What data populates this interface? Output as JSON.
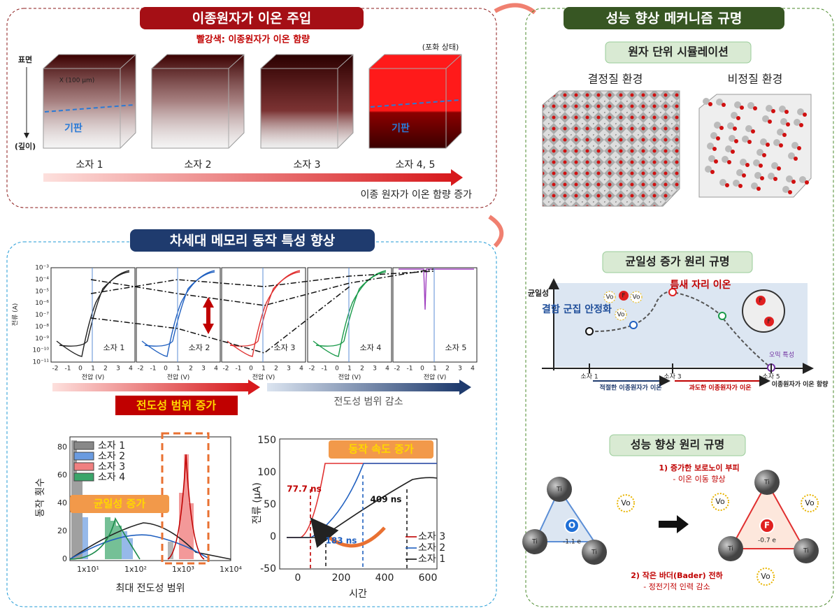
{
  "panel_injection": {
    "title": "이종원자가 이온 주입",
    "subtitle": "빨강색: 이종원자가 이온 함량",
    "saturation": "(포화 상태)",
    "surface": "표면",
    "depth": "(깊이)",
    "scale": "X (100 μm)",
    "substrate": "기판",
    "devices": [
      "소자 1",
      "소자 2",
      "소자 3",
      "소자 4, 5"
    ],
    "trend": "이종 원자가 이온 함량 증가"
  },
  "panel_memory": {
    "title": "차세대 메모리 동작 특성 향상",
    "iv": {
      "ylabel": "전류 (A)",
      "yticks": [
        "10⁻³",
        "10⁻⁴",
        "10⁻⁵",
        "10⁻⁶",
        "10⁻⁷",
        "10⁻⁸",
        "10⁻⁹",
        "10⁻¹⁰",
        "10⁻¹¹"
      ],
      "xticks": [
        "-2",
        "-1",
        "0",
        "1",
        "2",
        "3",
        "4"
      ],
      "xlabel": "전압 (V)",
      "devices": [
        "소자 1",
        "소자 2",
        "소자 3",
        "소자 4",
        "소자 5"
      ]
    },
    "increase": "전도성 범위 증가",
    "decrease": "전도성 범위 감소",
    "histogram": {
      "ylabel": "동작 횟수",
      "yticks": [
        "0",
        "20",
        "40",
        "60",
        "80"
      ],
      "xticks": [
        "1x10¹",
        "1x10²",
        "1x10³",
        "1x10⁴"
      ],
      "xlabel": "최대 전도성 범위",
      "legend": [
        "소자 1",
        "소자 2",
        "소자 3",
        "소자 4"
      ],
      "badge": "균일성 증가"
    },
    "speed": {
      "ylabel": "전류 (μA)",
      "yticks": [
        "-50",
        "0",
        "50",
        "100",
        "150"
      ],
      "xticks": [
        "0",
        "200",
        "400",
        "600"
      ],
      "xlabel": "시간",
      "times": [
        "77.7 ns",
        "183 ns",
        "409 ns"
      ],
      "legend": [
        "소자 3",
        "소자 2",
        "소자 1"
      ],
      "badge": "동작 속도 증가"
    }
  },
  "panel_mechanism": {
    "title": "성능 향상 메커니즘 규명",
    "simulation": {
      "title": "원자 단위 시뮬레이션",
      "crystalline": "결정질 환경",
      "amorphous": "비정질 환경"
    },
    "uniformity": {
      "title": "균일성 증가 원리 규명",
      "ylabel": "균일성",
      "cluster": "결함 군집 안정화",
      "interstitial": "틈새 자리 이온",
      "ohmic": "오믹 특성",
      "devices": [
        "소자 1",
        "소자 3",
        "소자 5"
      ],
      "xlabel": "이종원자가 이온 함량",
      "proper": "적절한 이종원자가 이온",
      "excess": "과도한 이종원자가 이온",
      "vacancy": "Vo",
      "fluorine": "F"
    },
    "principle": {
      "title": "성능 향상 원리 규명",
      "point1": "1) 증가한 보로노이 부피",
      "point1_detail": "- 이온 이동 향상",
      "point2": "2) 작은 바더(Bader) 전하",
      "point2_detail": "- 정전기적 인력 감소",
      "titanium": "Ti",
      "oxygen": "O",
      "fluorine": "F",
      "vacancy": "Vo",
      "charge_o": "-1.1 e",
      "charge_f": "-0.7 e"
    }
  }
}
